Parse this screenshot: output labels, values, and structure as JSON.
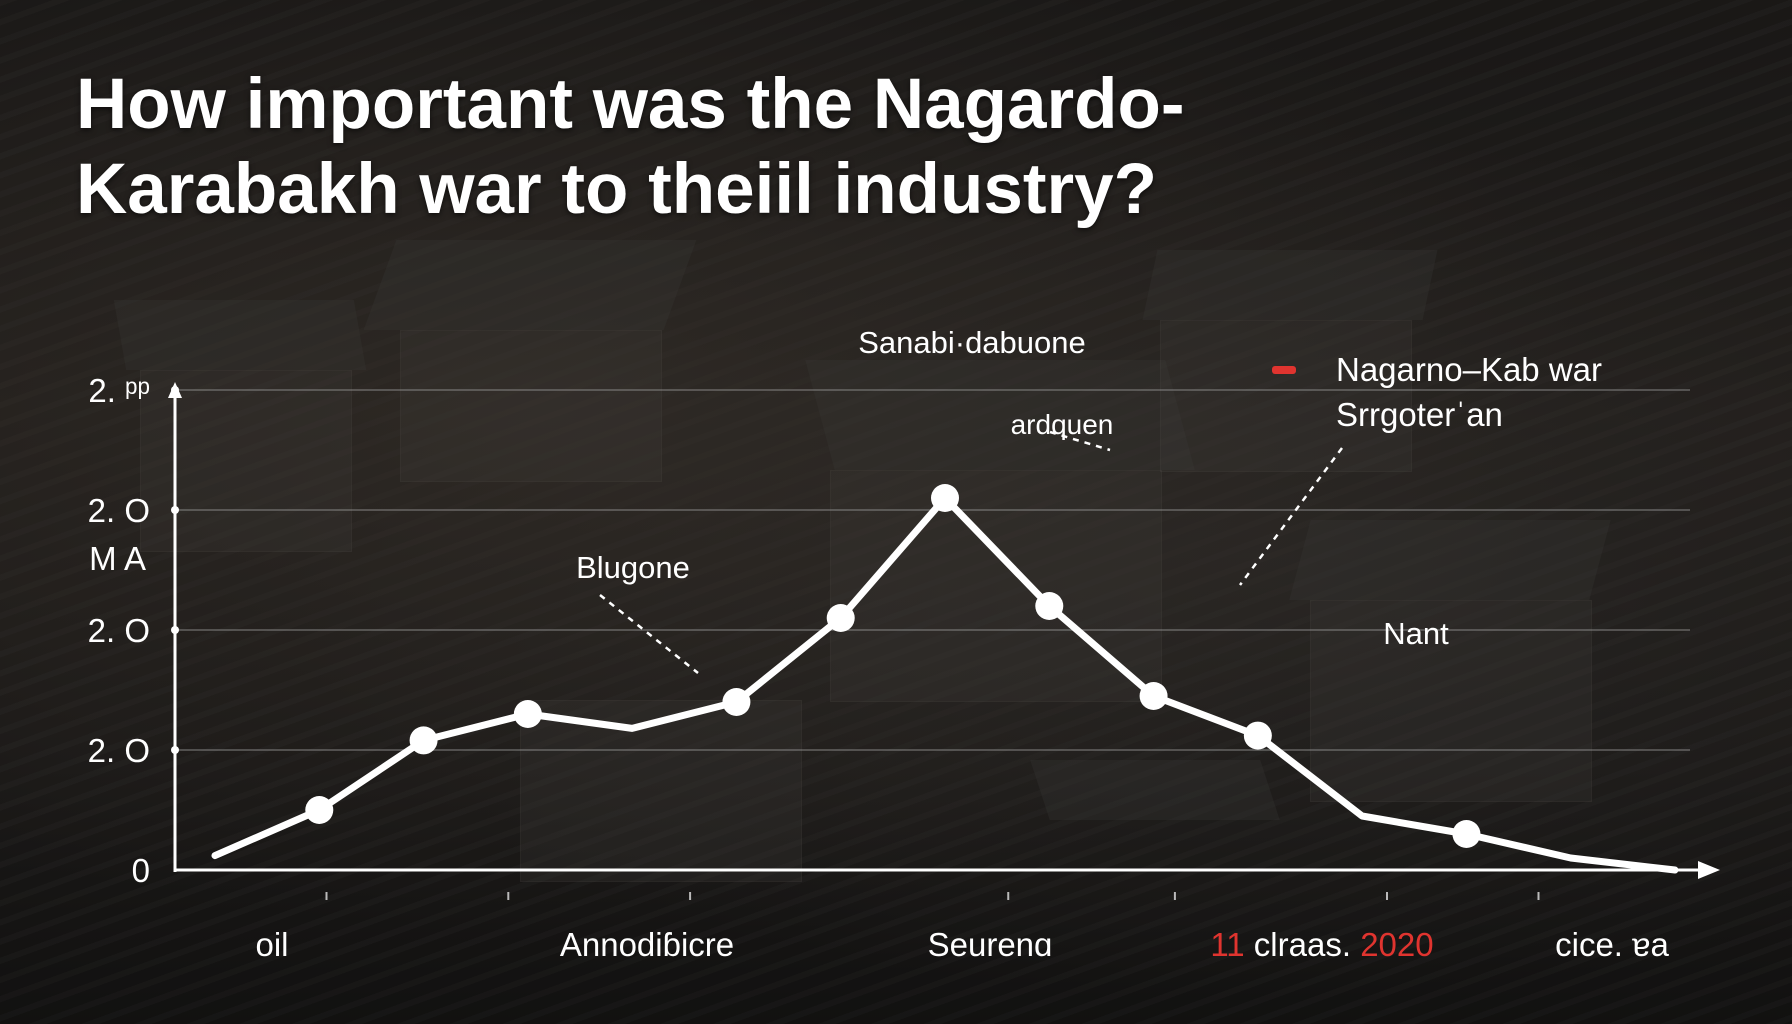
{
  "title": {
    "line1": "How important was the Nagardo-",
    "line2": "Karabakh war to theiil industry?"
  },
  "colors": {
    "line": "#ffffff",
    "grid": "#9a9a9a",
    "text": "#ffffff",
    "accent": "#e0342f"
  },
  "annotations": [
    {
      "text": "Sanabi·dabuone"
    },
    {
      "text": "ardquen"
    },
    {
      "text": "Blugone"
    },
    {
      "text": "Nagarno–Kab war"
    },
    {
      "text": "Srrgoterˈan"
    },
    {
      "text": "Nant"
    }
  ],
  "chart_data": {
    "type": "line",
    "y_axis_extra_label": "M A",
    "y_tick_labels": [
      "0",
      "2. O",
      "2. O",
      "2. O",
      "2. ᵖᵖ"
    ],
    "x_category_labels": [
      {
        "text": "oil"
      },
      {
        "text": "Annodiɓicre"
      },
      {
        "text": "Seurenɑ"
      },
      {
        "parts": [
          {
            "text": "11",
            "accent": true
          },
          {
            "text": " clraas. ",
            "accent": false
          },
          {
            "text": "2020",
            "accent": true
          }
        ]
      },
      {
        "text": "cice. ɐa"
      }
    ],
    "x": [
      0,
      1,
      2,
      3,
      4,
      5,
      6,
      7,
      8,
      9,
      10,
      11,
      12,
      13,
      14
    ],
    "series": [
      {
        "values": [
          0.12,
          0.5,
          1.08,
          1.3,
          1.18,
          1.4,
          2.1,
          3.1,
          2.2,
          1.45,
          1.12,
          0.45,
          0.3,
          0.1,
          0.0
        ]
      }
    ],
    "ylim": [
      0,
      4
    ],
    "marker_indices": [
      1,
      2,
      3,
      5,
      6,
      7,
      8,
      9,
      10,
      12
    ],
    "grid": true
  }
}
